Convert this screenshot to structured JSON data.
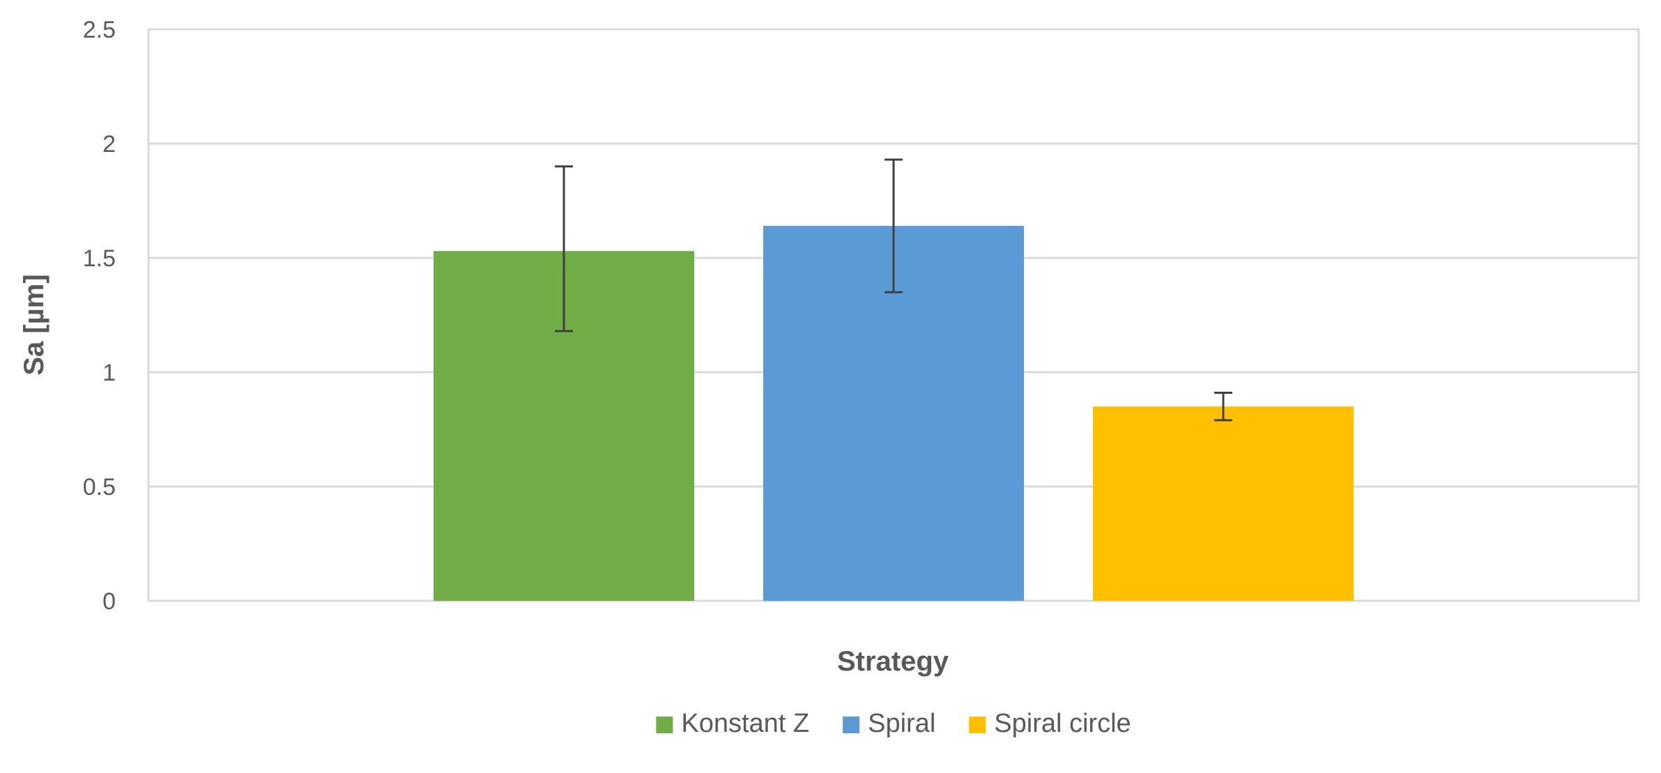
{
  "chart_data": {
    "type": "bar",
    "title": "",
    "xlabel": "Strategy",
    "ylabel": "Sa [µm]",
    "ylim": [
      0,
      2.5
    ],
    "yticks": [
      "0",
      "0.5",
      "1",
      "1.5",
      "2",
      "2.5"
    ],
    "grid": true,
    "legend_position": "bottom",
    "series": [
      {
        "name": "Konstant Z",
        "value": 1.53,
        "error_low": 1.18,
        "error_high": 1.9,
        "color": "#70AD47"
      },
      {
        "name": "Spiral",
        "value": 1.64,
        "error_low": 1.35,
        "error_high": 1.93,
        "color": "#5B9BD5"
      },
      {
        "name": "Spiral circle",
        "value": 0.85,
        "error_low": 0.79,
        "error_high": 0.91,
        "color": "#FFC000"
      }
    ]
  }
}
